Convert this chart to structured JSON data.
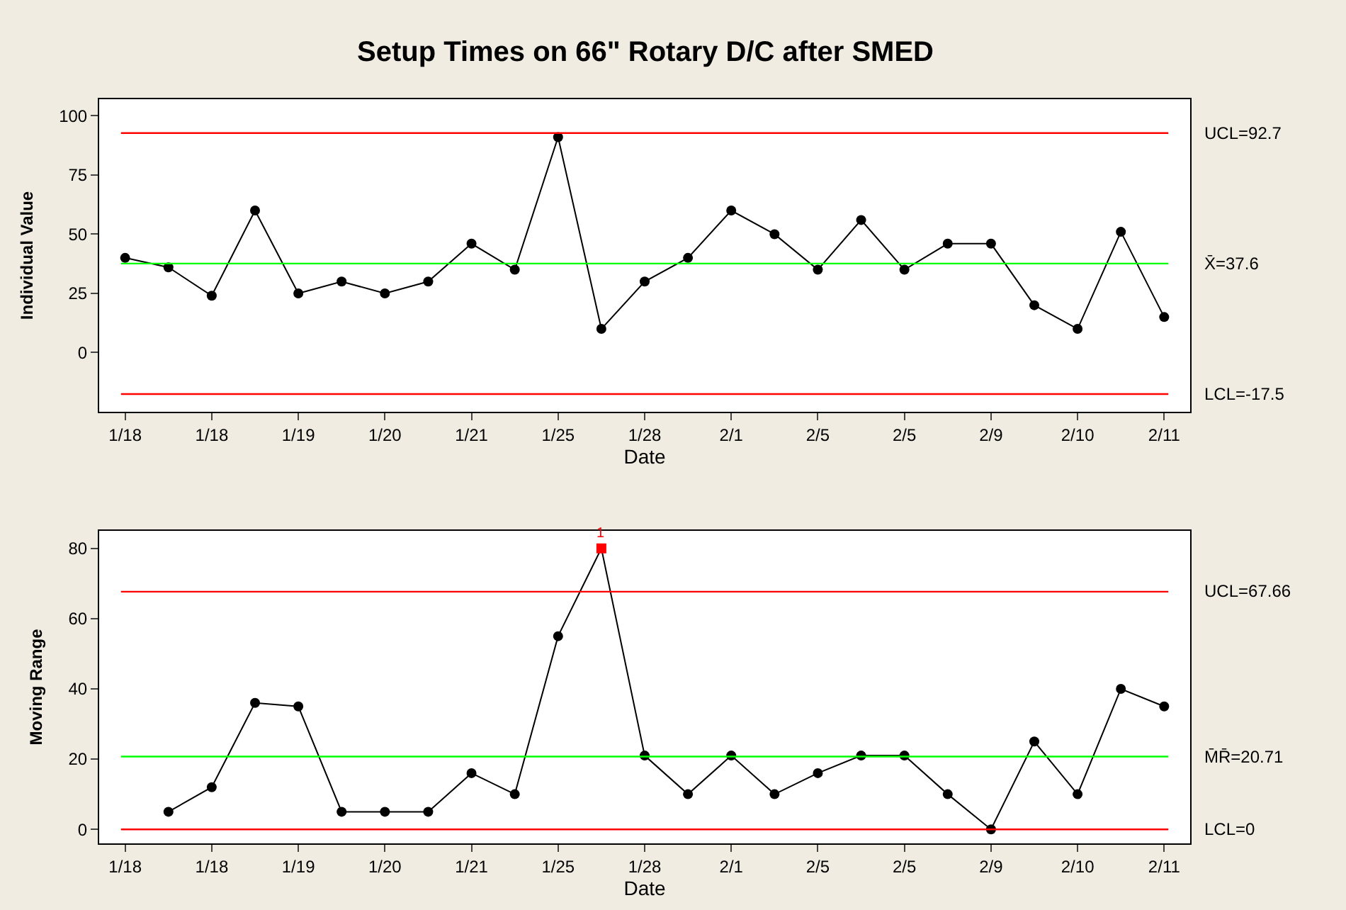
{
  "chart_data": [
    {
      "type": "line",
      "title": "Setup Times on 66\" Rotary D/C after SMED",
      "xlabel": "Date",
      "ylabel": "Individual Value",
      "categories": [
        "1/18",
        null,
        "1/18",
        null,
        "1/19",
        null,
        "1/20",
        null,
        "1/21",
        null,
        "1/25",
        null,
        "1/28",
        null,
        "2/1",
        null,
        "2/5",
        null,
        "2/5",
        null,
        "2/9",
        null,
        "2/10",
        null,
        "2/11"
      ],
      "series": [
        {
          "color": "#000000",
          "values": [
            40,
            36,
            24,
            60,
            25,
            30,
            25,
            30,
            46,
            35,
            91,
            10,
            30,
            40,
            60,
            50,
            35,
            56,
            35,
            46,
            46,
            20,
            10,
            51,
            15
          ]
        }
      ],
      "ylim": [
        -25,
        107
      ],
      "yticks": [
        0,
        25,
        50,
        75,
        100
      ],
      "marker": "circle",
      "line_style": "solid",
      "ref_lines": [
        {
          "axis": "y",
          "value": 92.7,
          "label": "UCL=92.7",
          "color": "#ff0000"
        },
        {
          "axis": "y",
          "value": 37.6,
          "label": "X̄=37.6",
          "color": "#00ff00"
        },
        {
          "axis": "y",
          "value": -17.5,
          "label": "LCL=-17.5",
          "color": "#ff0000"
        }
      ]
    },
    {
      "type": "line",
      "xlabel": "Date",
      "ylabel": "Moving Range",
      "categories": [
        "1/18",
        null,
        "1/18",
        null,
        "1/19",
        null,
        "1/20",
        null,
        "1/21",
        null,
        "1/25",
        null,
        "1/28",
        null,
        "2/1",
        null,
        "2/5",
        null,
        "2/5",
        null,
        "2/9",
        null,
        "2/10",
        null,
        "2/11"
      ],
      "series": [
        {
          "color": "#000000",
          "colors": [
            "#000000",
            "#000000",
            "#000000",
            "#000000",
            "#000000",
            "#000000",
            "#000000",
            "#000000",
            "#000000",
            "#000000",
            "#000000",
            "#ff0000",
            "#000000",
            "#000000",
            "#000000",
            "#000000",
            "#000000",
            "#000000",
            "#000000",
            "#000000",
            "#000000",
            "#000000",
            "#000000",
            "#000000",
            "#000000"
          ],
          "values": [
            null,
            5,
            12,
            36,
            35,
            5,
            5,
            5,
            16,
            10,
            55,
            80,
            21,
            10,
            21,
            10,
            16,
            21,
            21,
            10,
            0,
            25,
            10,
            40,
            35
          ]
        }
      ],
      "annotations": [
        {
          "text": "1",
          "y": 80
        }
      ],
      "ylim": [
        -4,
        85
      ],
      "yticks": [
        0,
        20,
        40,
        60,
        80
      ],
      "marker": "circle",
      "line_style": "solid",
      "ref_lines": [
        {
          "axis": "y",
          "value": 67.66,
          "label": "UCL=67.66",
          "color": "#ff0000"
        },
        {
          "axis": "y",
          "value": 20.71,
          "label": "M̄R̄=20.71",
          "color": "#00ff00"
        },
        {
          "axis": "y",
          "value": 0,
          "label": "LCL=0",
          "color": "#ff0000"
        }
      ]
    }
  ]
}
